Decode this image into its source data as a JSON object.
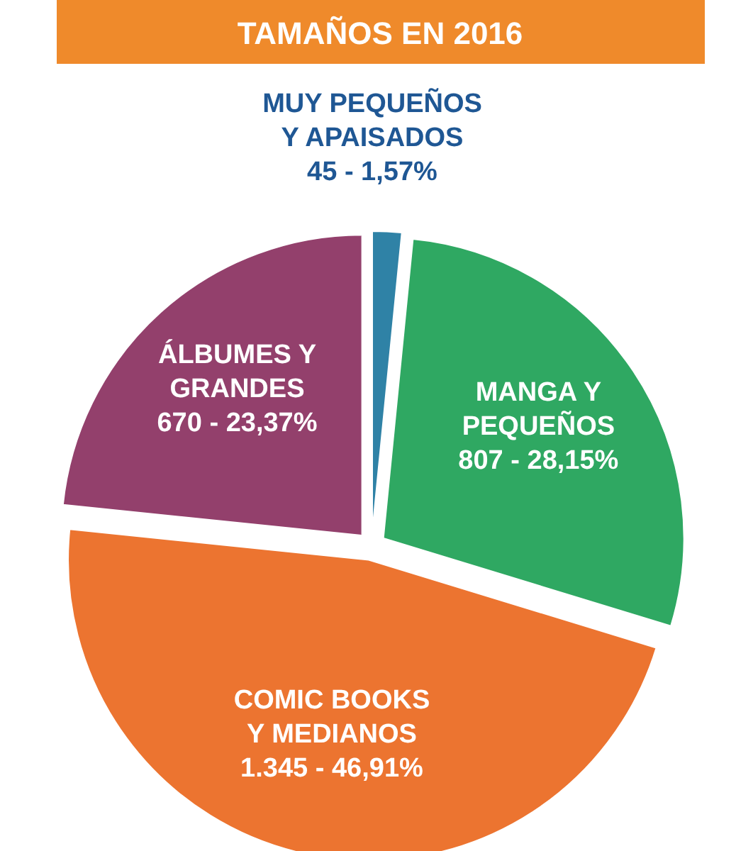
{
  "chart_data": {
    "type": "pie",
    "title": "TAMAÑOS EN 2016",
    "categories": [
      "MUY PEQUEÑOS\nY APAISADOS",
      "MANGA Y\nPEQUEÑOS",
      "COMIC BOOKS\nY MEDIANOS",
      "ÁLBUMES Y\nGRANDES"
    ],
    "values": [
      45,
      807,
      1345,
      670
    ],
    "colors": [
      "#2f82a6",
      "#2fa862",
      "#ec7430",
      "#93406c"
    ],
    "value_labels": [
      "45 - 1,57%",
      "807 - 28,15%",
      "1.345 - 46,91%",
      "670 - 23,37%"
    ]
  }
}
